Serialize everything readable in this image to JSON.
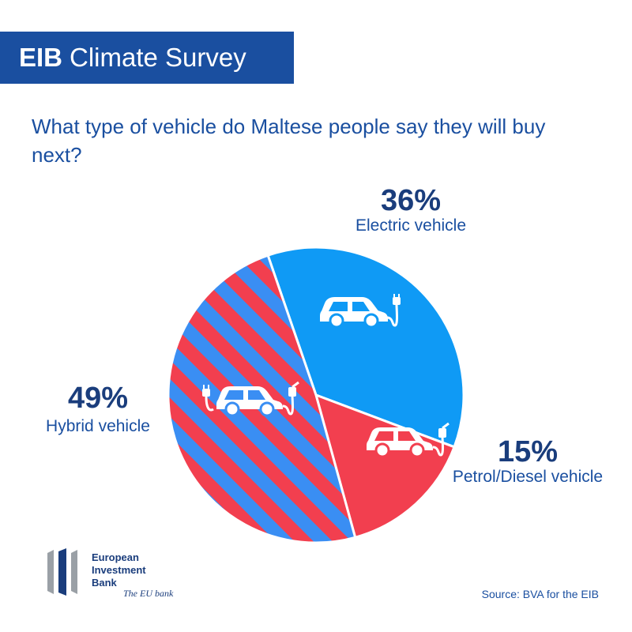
{
  "banner": {
    "brand": "EIB",
    "title": "Climate Survey"
  },
  "question": "What type of vehicle do Maltese people say they will buy next?",
  "chart_data": {
    "type": "pie",
    "title": "",
    "categories": [
      "Electric vehicle",
      "Petrol/Diesel vehicle",
      "Hybrid vehicle"
    ],
    "values": [
      36,
      15,
      49
    ],
    "value_labels": [
      "36%",
      "15%",
      "49%"
    ],
    "unit": "%",
    "legend": "none",
    "colors": {
      "electric": "#0f9af5",
      "petrol": "#f23f4f",
      "hybrid_stripe_a": "#f23f4f",
      "hybrid_stripe_b": "#3a8ef3"
    },
    "icons": [
      "electric-car-icon",
      "petrol-car-icon",
      "hybrid-car-icon"
    ]
  },
  "logo": {
    "line1": "European",
    "line2": "Investment",
    "line3": "Bank",
    "tagline": "The EU bank"
  },
  "source": "Source: BVA for the EIB"
}
